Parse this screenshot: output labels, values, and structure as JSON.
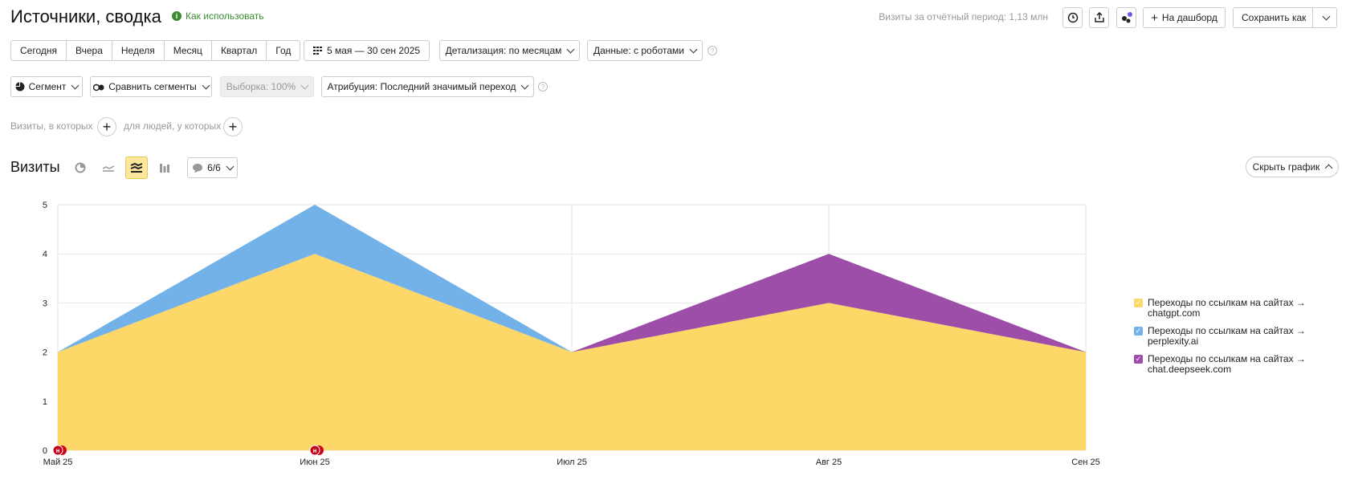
{
  "header": {
    "title": "Источники, сводка",
    "howto": "Как использовать",
    "visits_total": "Визиты за отчётный период: 1,13 млн",
    "to_dashboard": "На дашборд",
    "save_as": "Сохранить как"
  },
  "periods": [
    "Сегодня",
    "Вчера",
    "Неделя",
    "Месяц",
    "Квартал",
    "Год"
  ],
  "date_range": "5 мая — 30 сен 2025",
  "detail": "Детализация: по месяцам",
  "robots": "Данные: с роботами",
  "segment": "Сегмент",
  "compare": "Сравнить сегменты",
  "sample": "Выборка: 100%",
  "attribution": "Атрибуция: Последний значимый переход",
  "conditions": {
    "visits": "Визиты, в которых",
    "people": "для людей, у которых"
  },
  "chart_panel": {
    "heading": "Визиты",
    "notes_count": "6/6",
    "hide_chart": "Скрыть график"
  },
  "chart_data": {
    "type": "area",
    "stacked": true,
    "title": "",
    "xlabel": "",
    "ylabel": "",
    "categories": [
      "Май 25",
      "Июн 25",
      "Июл 25",
      "Авг 25",
      "Сен 25"
    ],
    "ylim": [
      0,
      5
    ],
    "yticks": [
      0,
      1,
      2,
      3,
      4,
      5
    ],
    "grid": true,
    "legend_position": "right",
    "series": [
      {
        "name": "Переходы по ссылкам на сайтах → chatgpt.com",
        "label_line1": "Переходы по ссылкам на сайтах →",
        "label_line2": "chatgpt.com",
        "color": "#fdd767",
        "values": [
          2,
          4,
          2,
          3,
          2
        ]
      },
      {
        "name": "Переходы по ссылкам на сайтах → perplexity.ai",
        "label_line1": "Переходы по ссылкам на сайтах →",
        "label_line2": "perplexity.ai",
        "color": "#72b2e8",
        "values": [
          0,
          1,
          0,
          0,
          0
        ]
      },
      {
        "name": "Переходы по ссылкам на сайтах → chat.deepseek.com",
        "label_line1": "Переходы по ссылкам на сайтах →",
        "label_line2": "chat.deepseek.com",
        "color": "#9c4ea8",
        "values": [
          0,
          0,
          0,
          1,
          0
        ]
      }
    ],
    "annotations": [
      {
        "x": "Май 25",
        "label": "н"
      },
      {
        "x": "Июн 25",
        "label": "н"
      }
    ]
  }
}
